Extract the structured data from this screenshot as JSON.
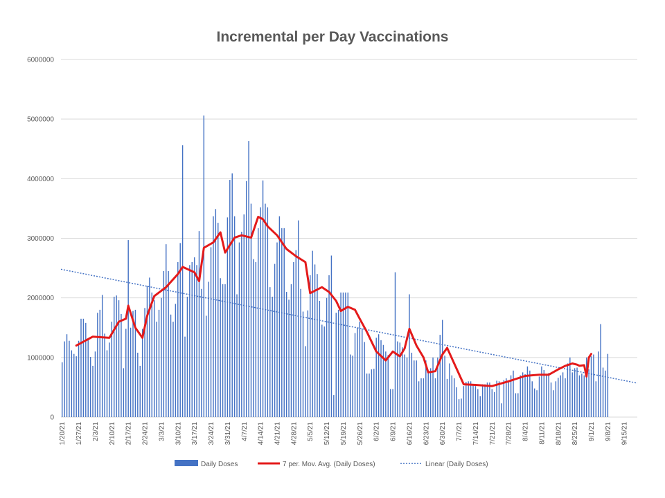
{
  "chart_data": {
    "type": "bar",
    "title": "Incremental per Day Vaccinations",
    "xlabel": "",
    "ylabel": "",
    "ylim": [
      0,
      6000000
    ],
    "yticks": [
      0,
      1000000,
      2000000,
      3000000,
      4000000,
      5000000,
      6000000
    ],
    "ytick_labels": [
      "0",
      "1000000",
      "2000000",
      "3000000",
      "4000000",
      "5000000",
      "6000000"
    ],
    "x_start_date": "1/20/21",
    "x_end_date": "9/20/21",
    "xtick_labels": [
      "1/20/21",
      "1/27/21",
      "2/3/21",
      "2/10/21",
      "2/17/21",
      "2/24/21",
      "3/3/21",
      "3/10/21",
      "3/17/21",
      "3/24/21",
      "3/31/21",
      "4/7/21",
      "4/14/21",
      "4/21/21",
      "4/28/21",
      "5/5/21",
      "5/12/21",
      "5/19/21",
      "5/26/21",
      "6/2/21",
      "6/9/21",
      "6/16/21",
      "6/23/21",
      "6/30/21",
      "7/7/21",
      "7/14/21",
      "7/21/21",
      "7/28/21",
      "8/4/21",
      "8/11/21",
      "8/18/21",
      "8/25/21",
      "9/1/21",
      "9/8/21",
      "9/15/21"
    ],
    "grid": true,
    "legend_position": "bottom",
    "colors": {
      "bars": "#4472c4",
      "moving_average": "#e41a1a",
      "trend": "#4472c4",
      "grid": "#d9d9d9",
      "text": "#595959"
    },
    "series": [
      {
        "name": "Daily Doses",
        "type": "bar",
        "values": [
          920000,
          1270000,
          1390000,
          1280000,
          1120000,
          1060000,
          1020000,
          1280000,
          1650000,
          1650000,
          1580000,
          1320000,
          1010000,
          860000,
          1100000,
          1750000,
          1800000,
          2050000,
          1400000,
          1120000,
          1250000,
          1600000,
          2020000,
          2040000,
          1960000,
          1730000,
          820000,
          1480000,
          2970000,
          1500000,
          1780000,
          1800000,
          1080000,
          860000,
          1480000,
          1830000,
          2200000,
          2340000,
          2090000,
          1960000,
          1600000,
          1800000,
          2000000,
          2450000,
          2900000,
          2450000,
          1720000,
          1600000,
          1900000,
          2600000,
          2920000,
          4560000,
          1350000,
          2020000,
          2550000,
          2600000,
          2680000,
          2550000,
          3120000,
          2150000,
          5060000,
          1700000,
          2270000,
          2850000,
          3370000,
          3490000,
          3260000,
          2330000,
          2230000,
          2230000,
          3350000,
          3980000,
          4090000,
          3370000,
          2060000,
          2930000,
          3110000,
          3400000,
          3960000,
          4630000,
          3580000,
          2650000,
          2600000,
          3170000,
          3520000,
          3970000,
          3580000,
          3520000,
          2180000,
          2020000,
          2570000,
          2930000,
          3370000,
          3170000,
          3170000,
          2100000,
          1970000,
          2230000,
          2600000,
          2800000,
          3300000,
          2150000,
          1770000,
          1190000,
          1790000,
          2380000,
          2790000,
          2560000,
          2400000,
          1950000,
          1550000,
          1520000,
          2000000,
          2380000,
          2710000,
          370000,
          1750000,
          1800000,
          2090000,
          2090000,
          2090000,
          2090000,
          1050000,
          1030000,
          1410000,
          1500000,
          1600000,
          1480000,
          1260000,
          730000,
          730000,
          800000,
          810000,
          1330000,
          1390000,
          1290000,
          1210000,
          1100000,
          1040000,
          470000,
          470000,
          2430000,
          1270000,
          1250000,
          1170000,
          1050000,
          1000000,
          2060000,
          1080000,
          950000,
          950000,
          600000,
          650000,
          650000,
          950000,
          750000,
          820000,
          1000000,
          650000,
          1000000,
          1380000,
          1630000,
          1030000,
          640000,
          900000,
          700000,
          650000,
          500000,
          300000,
          310000,
          520000,
          590000,
          600000,
          600000,
          540000,
          520000,
          470000,
          350000,
          550000,
          550000,
          580000,
          580000,
          470000,
          420000,
          610000,
          600000,
          230000,
          620000,
          650000,
          600000,
          700000,
          780000,
          400000,
          400000,
          700000,
          750000,
          720000,
          850000,
          780000,
          600000,
          480000,
          450000,
          680000,
          850000,
          790000,
          700000,
          740000,
          580000,
          450000,
          600000,
          660000,
          700000,
          750000,
          650000,
          900000,
          1000000,
          750000,
          820000,
          830000,
          700000,
          730000,
          700000,
          1000000,
          800000,
          1020000,
          1050000,
          600000,
          1100000,
          1560000,
          830000,
          780000,
          1060000
        ]
      },
      {
        "name": "7 per. Mov. Avg. (Daily Doses)",
        "type": "line",
        "x_points": [
          "1/26/21",
          "2/2/21",
          "2/9/21",
          "2/13/21",
          "2/16/21",
          "2/17/21",
          "2/20/21",
          "2/23/21",
          "2/25/21",
          "2/28/21",
          "3/5/21",
          "3/10/21",
          "3/12/21",
          "3/17/21",
          "3/19/21",
          "3/21/21",
          "3/25/21",
          "3/28/21",
          "3/30/21",
          "4/3/21",
          "4/6/21",
          "4/10/21",
          "4/13/21",
          "4/15/21",
          "4/17/21",
          "4/21/21",
          "4/25/21",
          "4/29/21",
          "5/3/21",
          "5/5/21",
          "5/7/21",
          "5/10/21",
          "5/13/21",
          "5/16/21",
          "5/18/21",
          "5/21/21",
          "5/24/21",
          "5/26/21",
          "5/29/21",
          "6/2/21",
          "6/6/21",
          "6/9/21",
          "6/12/21",
          "6/14/21",
          "6/16/21",
          "6/19/21",
          "6/22/21",
          "6/24/21",
          "6/27/21",
          "6/30/21",
          "7/2/21",
          "7/5/21",
          "7/9/21",
          "7/14/21",
          "7/21/21",
          "7/28/21",
          "8/4/21",
          "8/10/21",
          "8/14/21",
          "8/18/21",
          "8/21/21",
          "8/24/21",
          "8/26/21",
          "8/27/21",
          "8/29/21",
          "8/30/21",
          "8/31/21",
          "9/1/21"
        ],
        "values": [
          1200000,
          1350000,
          1330000,
          1600000,
          1650000,
          1870000,
          1500000,
          1330000,
          1700000,
          2030000,
          2180000,
          2400000,
          2520000,
          2430000,
          2280000,
          2840000,
          2930000,
          3100000,
          2760000,
          3010000,
          3050000,
          3010000,
          3360000,
          3320000,
          3200000,
          3050000,
          2820000,
          2700000,
          2600000,
          2080000,
          2120000,
          2180000,
          2100000,
          1950000,
          1780000,
          1850000,
          1800000,
          1650000,
          1430000,
          1100000,
          950000,
          1100000,
          1020000,
          1150000,
          1480000,
          1200000,
          1000000,
          750000,
          770000,
          1050000,
          1160000,
          900000,
          550000,
          540000,
          520000,
          600000,
          690000,
          710000,
          710000,
          800000,
          860000,
          900000,
          880000,
          860000,
          870000,
          680000,
          1000000,
          1060000
        ]
      },
      {
        "name": "Linear (Daily Doses)",
        "type": "trendline",
        "x_points": [
          "1/20/21",
          "9/20/21"
        ],
        "values": [
          2480000,
          570000
        ]
      }
    ]
  }
}
